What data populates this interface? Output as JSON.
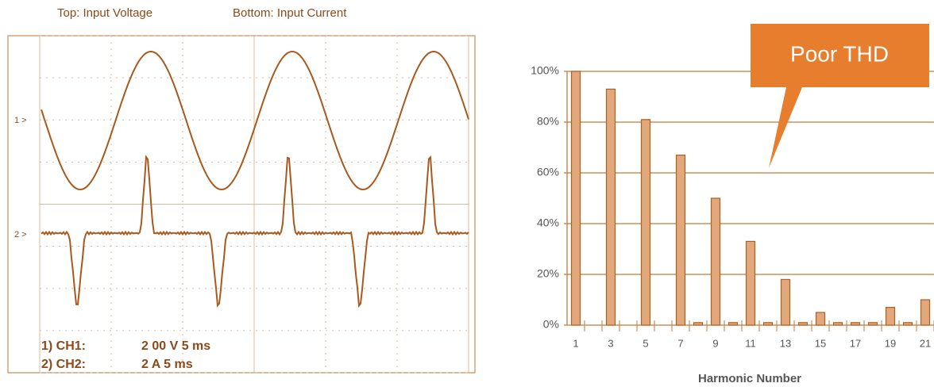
{
  "scope": {
    "top_label": "Top: Input Voltage",
    "bottom_label": "Bottom: Input Current",
    "ch1_marker": "1 >",
    "ch2_marker": "2 >",
    "ch1_name": "1) CH1:",
    "ch1_setting": "2 00 V  5 ms",
    "ch2_name": "2) CH2:",
    "ch2_setting": "2 A  5 ms"
  },
  "chart_data": {
    "type": "bar",
    "annotation": "Poor THD",
    "x_label": "Harmonic Number",
    "categories": [
      "1",
      null,
      "3",
      null,
      "5",
      null,
      "7",
      null,
      "9",
      null,
      "11",
      null,
      "13",
      null,
      "15",
      null,
      "17",
      null,
      "19",
      null,
      "21"
    ],
    "values": [
      100,
      0,
      93,
      0,
      81,
      0,
      67,
      1,
      50,
      1,
      33,
      1,
      18,
      1,
      5,
      1,
      1,
      1,
      7,
      1,
      10
    ],
    "color": "#e3a77c",
    "edge_color": "#b0601f",
    "ylim": [
      0,
      100
    ],
    "yticks": [
      {
        "value": 0,
        "label": "0%"
      },
      {
        "value": 20,
        "label": "20%"
      },
      {
        "value": 40,
        "label": "40%"
      },
      {
        "value": 60,
        "label": "60%"
      },
      {
        "value": 80,
        "label": "80%"
      },
      {
        "value": 100,
        "label": "100%"
      }
    ],
    "grid": true
  }
}
